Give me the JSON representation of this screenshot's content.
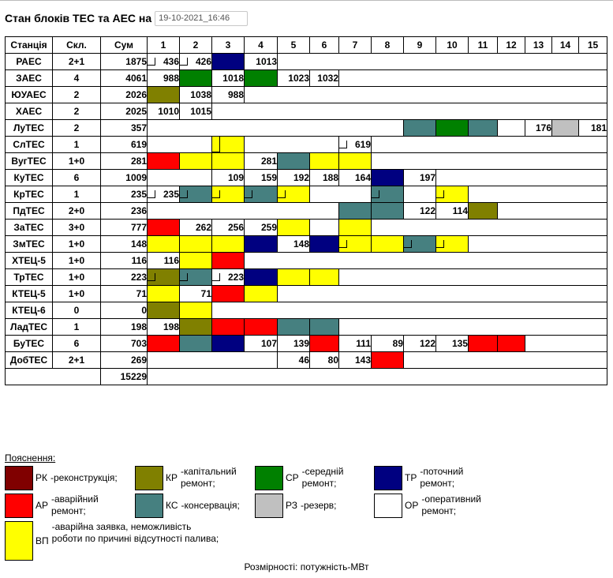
{
  "header": {
    "title": "Стан блоків ТЕС та АЕС на",
    "date": "19-10-2021_16:46"
  },
  "columns": [
    "Станція",
    "Скл.",
    "Сум",
    "1",
    "2",
    "3",
    "4",
    "5",
    "6",
    "7",
    "8",
    "9",
    "10",
    "11",
    "12",
    "13",
    "14",
    "15"
  ],
  "rows": [
    {
      "station": "РАЕС",
      "skl": "2+1",
      "sum": "1875"
    },
    {
      "station": "ЗАЕС",
      "skl": "4",
      "sum": "4061"
    },
    {
      "station": "ЮУАЕС",
      "skl": "2",
      "sum": "2026"
    },
    {
      "station": "ХАЕС",
      "skl": "2",
      "sum": "2025"
    },
    {
      "station": "ЛуТЕС",
      "skl": "2",
      "sum": "357"
    },
    {
      "station": "СлТЕС",
      "skl": "1",
      "sum": "619"
    },
    {
      "station": "ВугТЕС",
      "skl": "1+0",
      "sum": "281"
    },
    {
      "station": "КуТЕС",
      "skl": "6",
      "sum": "1009"
    },
    {
      "station": "КрТЕС",
      "skl": "1",
      "sum": "235"
    },
    {
      "station": "ПдТЕС",
      "skl": "2+0",
      "sum": "236"
    },
    {
      "station": "ЗаТЕС",
      "skl": "3+0",
      "sum": "777"
    },
    {
      "station": "ЗмТЕС",
      "skl": "1+0",
      "sum": "148"
    },
    {
      "station": "ХТЕЦ-5",
      "skl": "1+0",
      "sum": "116"
    },
    {
      "station": "ТрТЕС",
      "skl": "1+0",
      "sum": "223"
    },
    {
      "station": "КТЕЦ-5",
      "skl": "1+0",
      "sum": "71"
    },
    {
      "station": "КТЕЦ-6",
      "skl": "0",
      "sum": "0"
    },
    {
      "station": "ЛадТЕС",
      "skl": "1",
      "sum": "198"
    },
    {
      "station": "БуТЕС",
      "skl": "6",
      "sum": "703"
    },
    {
      "station": "ДобТЕС",
      "skl": "2+1",
      "sum": "269"
    }
  ],
  "total": "15229",
  "units": {
    "r0": [
      "436",
      "426",
      "",
      "1013"
    ],
    "r1": [
      "988",
      "",
      "1018",
      "",
      "1023",
      "1032"
    ],
    "r2": [
      "",
      "1038",
      "988"
    ],
    "r3": [
      "1010",
      "1015"
    ],
    "r4": [
      "176",
      "181"
    ],
    "r5": [
      "619"
    ],
    "r6": [
      "281"
    ],
    "r7": [
      "109",
      "159",
      "192",
      "188",
      "164",
      "197"
    ],
    "r8": [
      "235"
    ],
    "r9": [
      "122",
      "114"
    ],
    "r10": [
      "262",
      "256",
      "259"
    ],
    "r11": [
      "148"
    ],
    "r12": [
      "116"
    ],
    "r13": [
      "223"
    ],
    "r14": [
      "71"
    ],
    "r16": [
      "198"
    ],
    "r17": [
      "107",
      "139",
      "111",
      "89",
      "122",
      "135"
    ],
    "r18": [
      "46",
      "80",
      "143"
    ]
  },
  "colors": {
    "RK": "#800000",
    "AP": "#ff0000",
    "KP": "#808000",
    "KC": "#468080",
    "CP": "#008000",
    "P3": "#c0c0c0",
    "TP": "#000080",
    "BP": "#ffff00",
    "OP": "#ffffff"
  },
  "legend": {
    "title": "Пояснення:",
    "items": [
      {
        "code": "РК",
        "desc": "-реконструкція;"
      },
      {
        "code": "КР",
        "desc": "-капітальний ремонт;"
      },
      {
        "code": "СР",
        "desc": "-середній ремонт;"
      },
      {
        "code": "ТР",
        "desc": "-поточний ремонт;"
      },
      {
        "code": "АР",
        "desc": "-аварійний ремонт;"
      },
      {
        "code": "КС",
        "desc": "-консервація;"
      },
      {
        "code": "РЗ",
        "desc": "-резерв;"
      },
      {
        "code": "ОР",
        "desc": "-оперативний ремонт;"
      },
      {
        "code": "ВП",
        "desc": "-аварійна заявка, неможливість роботи по причині відсутності палива;"
      }
    ]
  },
  "footer": "Розмірності: потужність-МВт"
}
